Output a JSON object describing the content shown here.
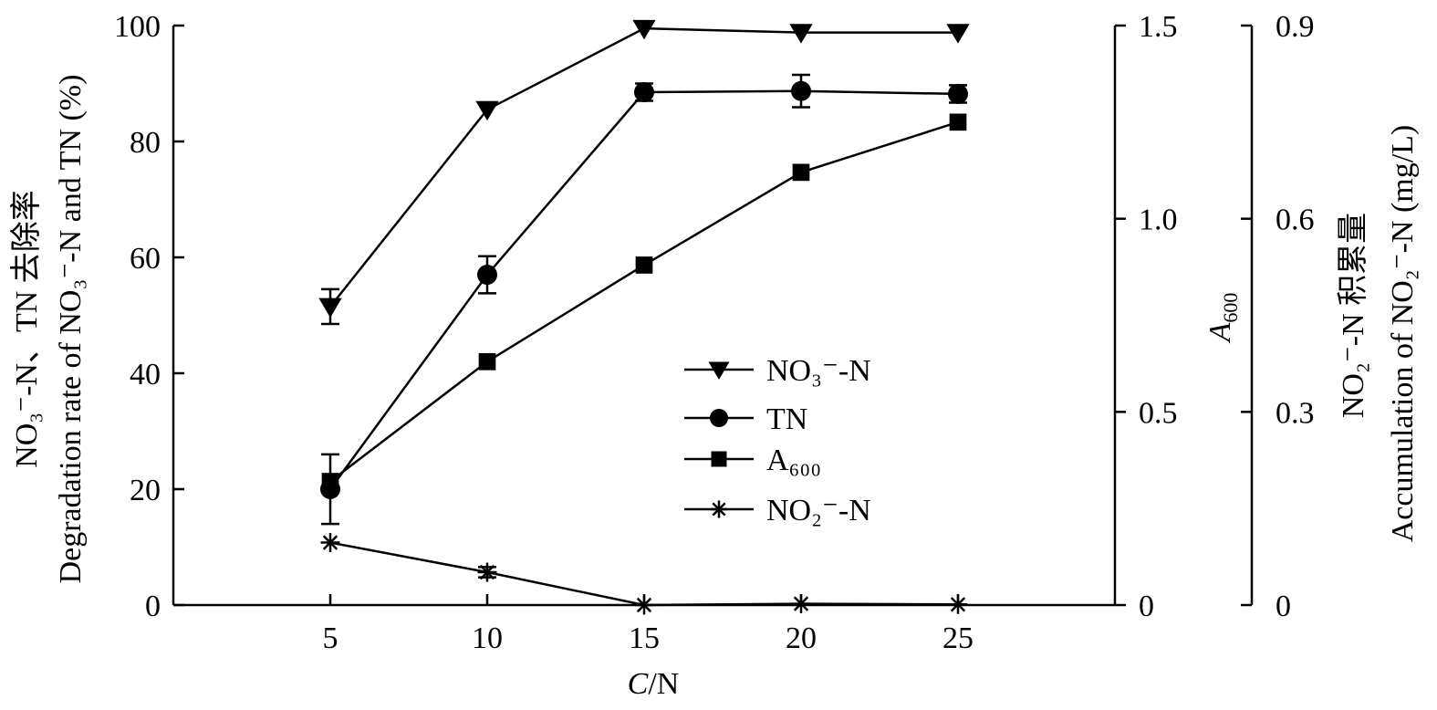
{
  "chart_data": {
    "type": "line",
    "x": [
      5,
      10,
      15,
      20,
      25
    ],
    "xlabel_italic": "C",
    "xlabel_rest": "/N",
    "xlim": [
      0,
      30
    ],
    "xticks": [
      "5",
      "10",
      "15",
      "20",
      "25"
    ],
    "left_axis": {
      "ylabel_zh": "NO₃⁻-N、TN 去除率",
      "ylabel_en": "Degradation rate of NO₃⁻-N and TN (%)",
      "ylim": [
        0,
        100
      ],
      "ticks": [
        "0",
        "20",
        "40",
        "60",
        "80",
        "100"
      ]
    },
    "mid_axis": {
      "ylabel_italic": "A",
      "ylabel_sub": "600",
      "ylim": [
        0,
        1.5
      ],
      "ticks": [
        "0",
        "0.5",
        "1.0",
        "1.5"
      ]
    },
    "right_axis": {
      "ylabel_zh": "NO₂⁻-N 积累量",
      "ylabel_en": "Accumulation of NO₂⁻-N (mg/L)",
      "ylim": [
        0,
        0.9
      ],
      "ticks": [
        "0",
        "0.3",
        "0.6",
        "0.9"
      ]
    },
    "series": [
      {
        "name": "NO₃⁻-N",
        "axis": "left",
        "marker": "triangle-down",
        "values": [
          51.5,
          85.5,
          99.5,
          98.8,
          98.8
        ],
        "errors": [
          3,
          0,
          0,
          0,
          0
        ]
      },
      {
        "name": "TN",
        "axis": "left",
        "marker": "circle",
        "values": [
          20,
          57,
          88.5,
          88.7,
          88.2
        ],
        "errors": [
          6,
          3.2,
          1.5,
          2.8,
          1.5
        ]
      },
      {
        "name": "A₆₀₀",
        "axis": "mid",
        "marker": "square",
        "values": [
          0.32,
          0.63,
          0.88,
          1.12,
          1.25
        ],
        "errors": [
          0,
          0,
          0,
          0,
          0
        ]
      },
      {
        "name": "NO₂⁻-N",
        "axis": "right",
        "marker": "asterisk",
        "values": [
          0.097,
          0.051,
          0.0,
          0.002,
          0.001
        ],
        "errors": [
          0,
          0.008,
          0,
          0,
          0
        ]
      }
    ]
  }
}
